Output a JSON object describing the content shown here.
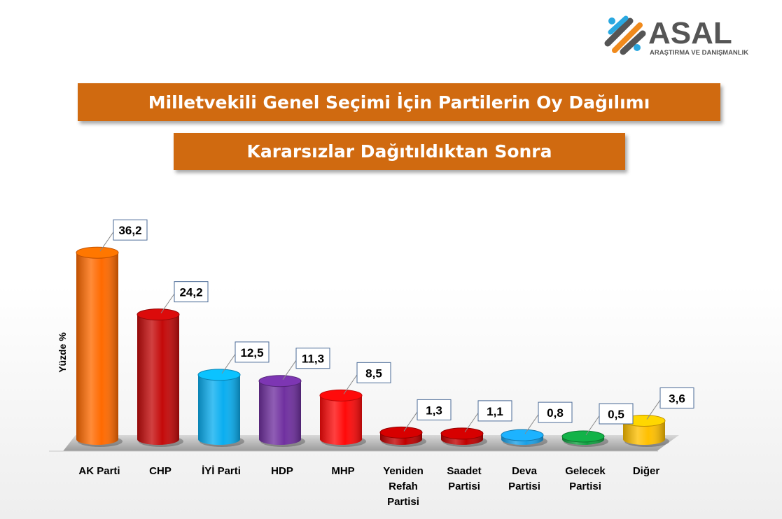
{
  "logo": {
    "brand": "ASAL",
    "tagline": "ARAŞTIRMA VE DANIŞMANLIK"
  },
  "header": {
    "title": "Milletvekili Genel Seçimi İçin Partilerin Oy Dağılımı",
    "subtitle": "Kararsızlar Dağıtıldıktan Sonra"
  },
  "chart_data": {
    "type": "bar",
    "ylabel": "Yüzde %",
    "xlabel": "",
    "ylim": [
      0,
      40
    ],
    "grid": false,
    "categories": [
      [
        "AK Parti"
      ],
      [
        "CHP"
      ],
      [
        "İYİ Parti"
      ],
      [
        "HDP"
      ],
      [
        "MHP"
      ],
      [
        "Yeniden",
        "Refah",
        "Partisi"
      ],
      [
        "Saadet",
        "Partisi"
      ],
      [
        "Deva",
        "Partisi"
      ],
      [
        "Gelecek",
        "Partisi"
      ],
      [
        "Diğer"
      ]
    ],
    "values": [
      36.2,
      24.2,
      12.5,
      11.3,
      8.5,
      1.3,
      1.1,
      0.8,
      0.5,
      3.6
    ],
    "value_labels": [
      "36,2",
      "24,2",
      "12,5",
      "11,3",
      "8,5",
      "1,3",
      "1,1",
      "0,8",
      "0,5",
      "3,6"
    ],
    "colors": [
      "#ff6a00",
      "#c40a0a",
      "#0aaef0",
      "#7030a0",
      "#ff0a0a",
      "#c00000",
      "#c00000",
      "#1aa0e6",
      "#10a040",
      "#ffc000"
    ]
  }
}
